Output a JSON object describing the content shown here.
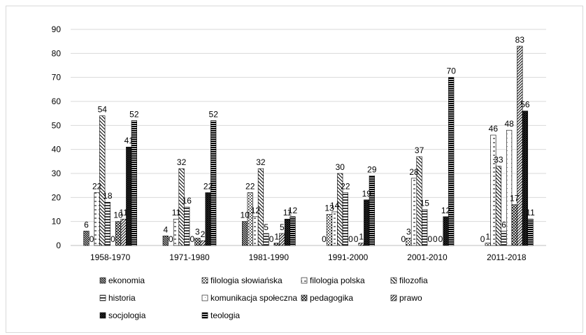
{
  "chart_data": {
    "type": "bar",
    "title": "",
    "xlabel": "",
    "ylabel": "",
    "ylim": [
      0,
      90
    ],
    "yticks": [
      0,
      10,
      20,
      30,
      40,
      50,
      60,
      70,
      80,
      90
    ],
    "grid": true,
    "legend_position": "bottom-left",
    "categories": [
      "1958-1970",
      "1971-1980",
      "1981-1990",
      "1991-2000",
      "2001-2010",
      "2011-2018"
    ],
    "series": [
      {
        "name": "ekonomia",
        "values": [
          6,
          4,
          10,
          0,
          0,
          0
        ],
        "pattern": "diag-down-dense"
      },
      {
        "name": "filologia słowiańska",
        "values": [
          0,
          0,
          22,
          13,
          3,
          1
        ],
        "pattern": "dots-coarse"
      },
      {
        "name": "filologia polska",
        "values": [
          22,
          11,
          12,
          14,
          28,
          46
        ],
        "pattern": "dashes"
      },
      {
        "name": "filozofia",
        "values": [
          54,
          32,
          32,
          30,
          37,
          33
        ],
        "pattern": "diag-down-wide"
      },
      {
        "name": "historia",
        "values": [
          18,
          16,
          5,
          22,
          15,
          6
        ],
        "pattern": "horizontal"
      },
      {
        "name": "komunikacja społeczna",
        "values": [
          0,
          0,
          0,
          0,
          0,
          48
        ],
        "pattern": "dots-fine"
      },
      {
        "name": "pedagogika",
        "values": [
          10,
          3,
          1,
          0,
          0,
          17
        ],
        "pattern": "grid-diag"
      },
      {
        "name": "prawo",
        "values": [
          11,
          2,
          5,
          1,
          0,
          83
        ],
        "pattern": "diag-up"
      },
      {
        "name": "socjologia",
        "values": [
          41,
          22,
          11,
          19,
          12,
          56
        ],
        "pattern": "crosshatch-dense"
      },
      {
        "name": "teologia",
        "values": [
          52,
          52,
          12,
          29,
          70,
          11
        ],
        "pattern": "horizontal-dense"
      }
    ]
  }
}
